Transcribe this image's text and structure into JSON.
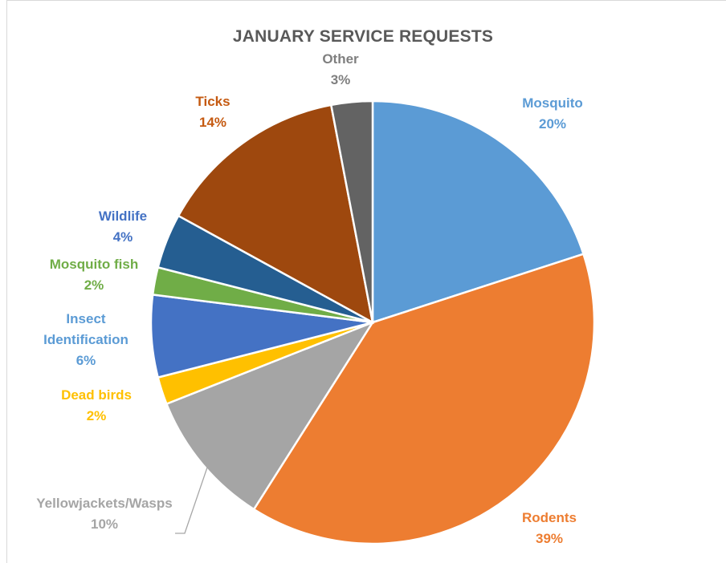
{
  "chart_data": {
    "type": "pie",
    "title": "JANUARY SERVICE REQUESTS",
    "slices": [
      {
        "name": "Mosquito",
        "value": 20,
        "label": "20%",
        "color": "#5b9bd5",
        "label_color": "#5b9bd5"
      },
      {
        "name": "Rodents",
        "value": 39,
        "label": "39%",
        "color": "#ed7d31",
        "label_color": "#ed7d31"
      },
      {
        "name": "Yellowjackets/Wasps",
        "value": 10,
        "label": "10%",
        "color": "#a5a5a5",
        "label_color": "#a5a5a5"
      },
      {
        "name": "Dead birds",
        "value": 2,
        "label": "2%",
        "color": "#ffc000",
        "label_color": "#ffc000"
      },
      {
        "name": "Insect Identification",
        "value": 6,
        "label": "6%",
        "color": "#4472c4",
        "label_color": "#5b9bd5"
      },
      {
        "name": "Mosquito fish",
        "value": 2,
        "label": "2%",
        "color": "#70ad47",
        "label_color": "#70ad47"
      },
      {
        "name": "Wildlife",
        "value": 4,
        "label": "4%",
        "color": "#255e91",
        "label_color": "#4472c4"
      },
      {
        "name": "Ticks",
        "value": 14,
        "label": "14%",
        "color": "#9e480e",
        "label_color": "#c55a11"
      },
      {
        "name": "Other",
        "value": 3,
        "label": "3%",
        "color": "#636363",
        "label_color": "#7f7f7f"
      }
    ],
    "start_angle_deg": 0,
    "direction": "clockwise",
    "legend": "none",
    "data_labels": "outside"
  }
}
